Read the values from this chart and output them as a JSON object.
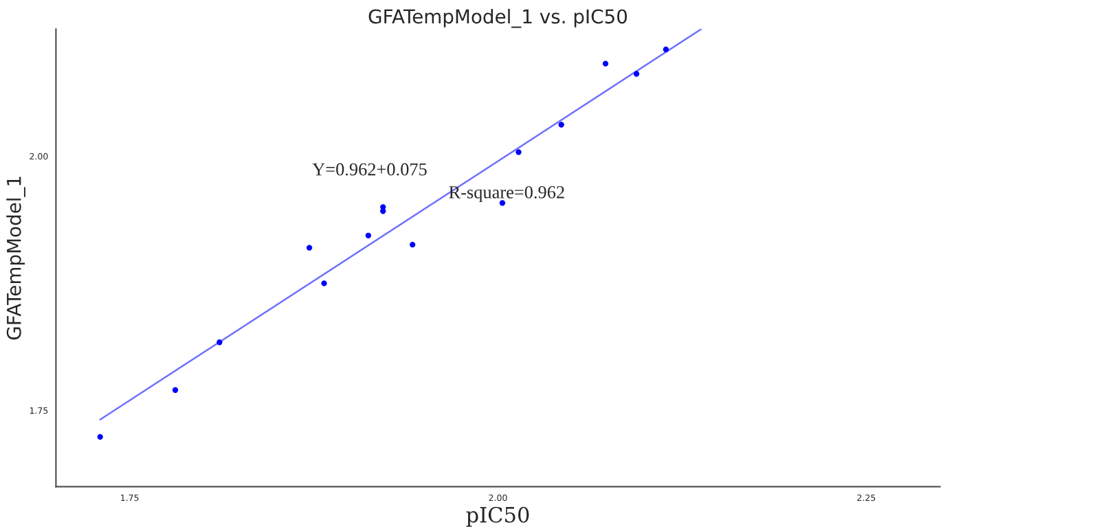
{
  "chart_data": {
    "type": "scatter",
    "title": "GFATempModel_1 vs. pIC50",
    "xlabel": "pIC50",
    "ylabel": "GFATempModel_1",
    "xlim": [
      1.7,
      2.3
    ],
    "ylim": [
      1.675,
      2.125
    ],
    "xticks": [
      {
        "value": 1.75,
        "label": "1.75"
      },
      {
        "value": 2.0,
        "label": "2.00"
      },
      {
        "value": 2.25,
        "label": "2.25"
      }
    ],
    "yticks": [
      {
        "value": 1.75,
        "label": "1.75"
      },
      {
        "value": 2.0,
        "label": "2.00"
      }
    ],
    "grid": false,
    "legend": false,
    "series": [
      {
        "color": "#0000ff",
        "marker": "circle",
        "x": [
          1.73,
          1.781,
          1.811,
          1.872,
          1.882,
          1.912,
          1.922,
          1.922,
          1.942,
          2.003,
          2.014,
          2.043,
          2.073,
          2.094,
          2.114
        ],
        "values": [
          1.724,
          1.77,
          1.817,
          1.91,
          1.875,
          1.922,
          1.95,
          1.946,
          1.913,
          1.954,
          2.004,
          2.031,
          2.091,
          2.081,
          2.105
        ]
      },
      {
        "type": "line",
        "color": "#7070ff",
        "x": [
          1.73,
          2.138
        ],
        "values": [
          1.741,
          2.125
        ]
      }
    ],
    "annotations": [
      "Y=0.962+0.075",
      "R-square=0.962"
    ]
  }
}
